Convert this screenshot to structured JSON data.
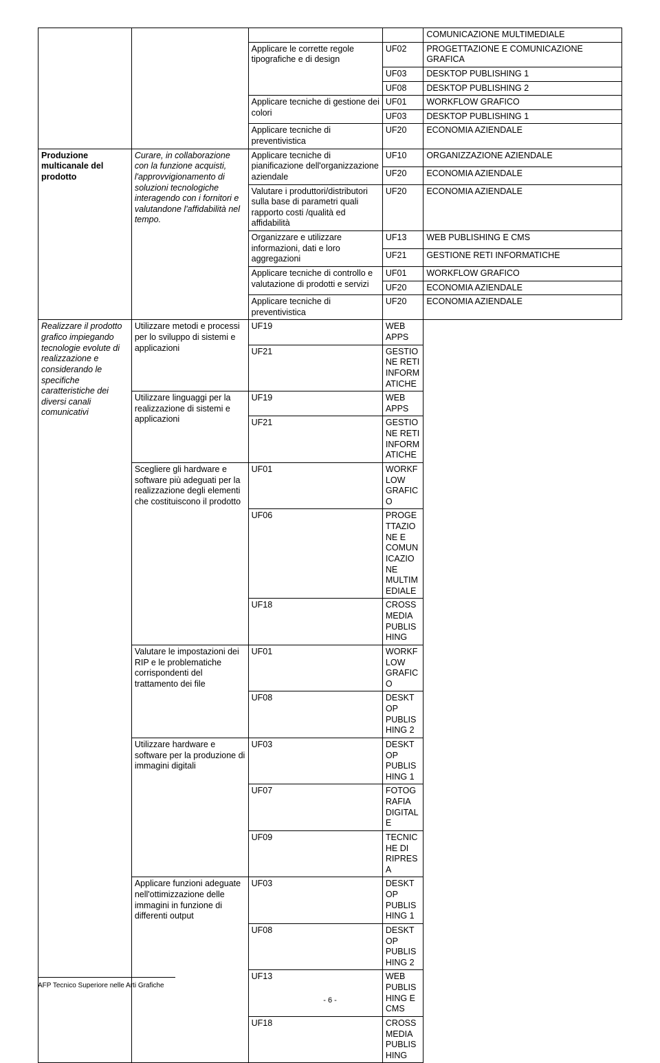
{
  "table": {
    "colClasses": [
      "col1",
      "col2",
      "col3",
      "col4",
      "col5"
    ],
    "blocks": [
      {
        "col1": {
          "text": "",
          "rowspan": 26
        },
        "col2": {
          "text": "",
          "rowspan": 7
        },
        "groups": [
          {
            "col3": "",
            "rows": [
              [
                "",
                "COMUNICAZIONE MULTIMEDIALE"
              ]
            ]
          },
          {
            "col3": "Applicare le corrette regole tipografiche e di design",
            "rows": [
              [
                "UF02",
                "PROGETTAZIONE E COMUNICAZIONE GRAFICA"
              ],
              [
                "UF03",
                "DESKTOP PUBLISHING 1"
              ],
              [
                "UF08",
                "DESKTOP PUBLISHING 2"
              ]
            ]
          },
          {
            "col3": "Applicare tecniche di gestione dei colori",
            "rows": [
              [
                "UF01",
                "WORKFLOW GRAFICO"
              ],
              [
                "UF03",
                "DESKTOP PUBLISHING 1"
              ]
            ]
          },
          {
            "col3": "Applicare tecniche di preventivistica",
            "rows": [
              [
                "UF20",
                "ECONOMIA AZIENDALE"
              ]
            ]
          }
        ]
      },
      {
        "col1": {
          "text": "Produzione multicanale del prodotto",
          "rowspan": 19
        },
        "col2": {
          "text": "Curare, in collaborazione con la funzione acquisti, l'approvvigionamento di soluzioni tecnologiche interagendo con i fornitori e valutandone l'affidabilità nel tempo.",
          "rowspan": 8
        },
        "groups": [
          {
            "col3": "Applicare tecniche di pianificazione dell'organizzazione aziendale",
            "rows": [
              [
                "UF10",
                "ORGANIZZAZIONE AZIENDALE"
              ],
              [
                "UF20",
                "ECONOMIA AZIENDALE"
              ]
            ]
          },
          {
            "col3": "Valutare i produttori/distributori sulla base di parametri quali rapporto costi /qualità ed affidabilità",
            "rows": [
              [
                "UF20",
                "ECONOMIA AZIENDALE"
              ]
            ]
          },
          {
            "col3": "Organizzare e utilizzare informazioni, dati e loro aggregazioni",
            "rows": [
              [
                "UF13",
                "WEB PUBLISHING E CMS"
              ],
              [
                "UF21",
                "GESTIONE RETI INFORMATICHE"
              ]
            ]
          },
          {
            "col3": "Applicare tecniche di controllo e valutazione di prodotti e servizi",
            "rows": [
              [
                "UF01",
                "WORKFLOW GRAFICO"
              ],
              [
                "UF20",
                "ECONOMIA AZIENDALE"
              ]
            ]
          },
          {
            "col3": "Applicare tecniche di preventivistica",
            "rows": [
              [
                "UF20",
                "ECONOMIA AZIENDALE"
              ]
            ]
          }
        ]
      },
      {
        "col2": {
          "text": "Realizzare il prodotto grafico impiegando tecnologie evolute di realizzazione e considerando le specifiche caratteristiche dei diversi canali comunicativi",
          "rowspan": 16
        },
        "groups": [
          {
            "col3": "Utilizzare metodi e processi per lo sviluppo di sistemi e applicazioni",
            "rows": [
              [
                "UF19",
                "WEB APPS"
              ],
              [
                "UF21",
                "GESTIONE RETI INFORMATICHE"
              ]
            ]
          },
          {
            "col3": "Utilizzare linguaggi per la realizzazione di sistemi e applicazioni",
            "rows": [
              [
                "UF19",
                "WEB APPS"
              ],
              [
                "UF21",
                "GESTIONE RETI INFORMATICHE"
              ]
            ]
          },
          {
            "col3": "Scegliere gli hardware e software più adeguati per la realizzazione degli elementi che costituiscono il prodotto",
            "rows": [
              [
                "UF01",
                "WORKFLOW GRAFICO"
              ],
              [
                "UF06",
                "PROGETTAZIONE E COMUNICAZIONE MULTIMEDIALE"
              ],
              [
                "UF18",
                "CROSS MEDIA PUBLISHING"
              ]
            ]
          },
          {
            "col3": "Valutare le impostazioni dei RIP e le problematiche corrispondenti del trattamento dei file",
            "rows": [
              [
                "UF01",
                "WORKFLOW GRAFICO"
              ],
              [
                "UF08",
                "DESKTOP PUBLISHING 2"
              ]
            ]
          },
          {
            "col3": "Utilizzare hardware e software per la produzione di immagini digitali",
            "rows": [
              [
                "UF03",
                "DESKTOP PUBLISHING 1"
              ],
              [
                "UF07",
                "FOTOGRAFIA DIGITALE"
              ],
              [
                "UF09",
                "TECNICHE DI RIPRESA"
              ]
            ]
          },
          {
            "col3": "Applicare funzioni adeguate nell'ottimizzazione delle immagini in funzione di differenti output",
            "rows": [
              [
                "UF03",
                "DESKTOP PUBLISHING 1"
              ],
              [
                "UF08",
                "DESKTOP PUBLISHING 2"
              ],
              [
                "UF13",
                "WEB PUBLISHING E CMS"
              ],
              [
                "UF18",
                "CROSS MEDIA PUBLISHING"
              ]
            ]
          }
        ]
      }
    ]
  },
  "footer": {
    "text": "AFP Tecnico Superiore nelle Arti Grafiche",
    "page": "- 6 -"
  }
}
